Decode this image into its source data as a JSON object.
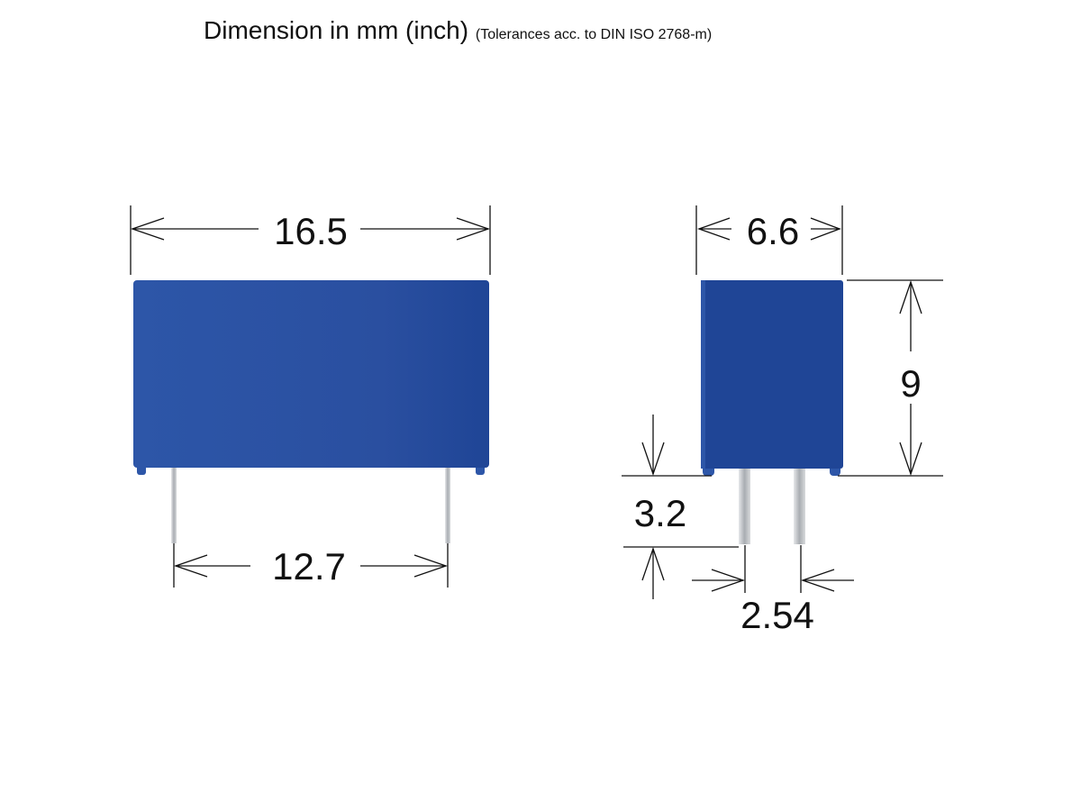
{
  "header": {
    "title": "Dimension in mm (inch)",
    "subtitle": "(Tolerances acc. to DIN ISO 2768-m)"
  },
  "front_view": {
    "width": "16.5",
    "pin_pitch_outer": "12.7"
  },
  "side_view": {
    "depth": "6.6",
    "height": "9",
    "pin_length": "3.2",
    "pin_spacing": "2.54"
  },
  "colors": {
    "body": "#2a4fa0",
    "body_dark": "#1f4596",
    "pin": "#c8ccd0",
    "line": "#111111"
  }
}
